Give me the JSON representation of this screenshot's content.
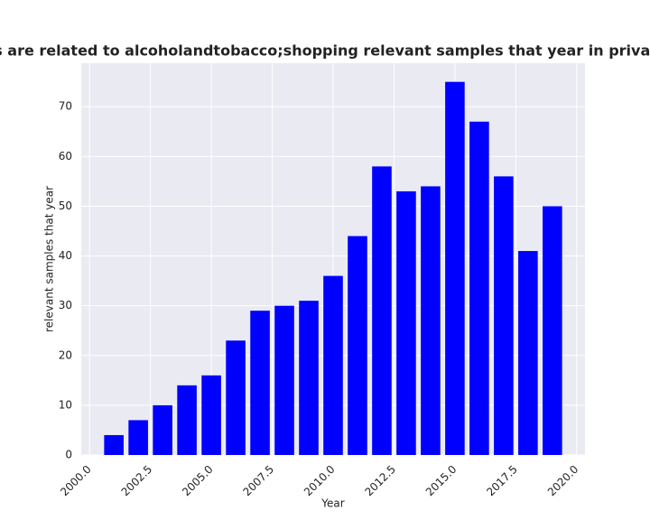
{
  "chart_data": {
    "type": "bar",
    "title": "Categories are related to alcoholandtobacco;shopping relevant samples that year in privacy policies",
    "x_label": "Year",
    "y_label": "relevant samples that year",
    "x": [
      2001,
      2002,
      2003,
      2004,
      2005,
      2006,
      2007,
      2008,
      2009,
      2010,
      2011,
      2012,
      2013,
      2014,
      2015,
      2016,
      2017,
      2018,
      2019
    ],
    "values": [
      4,
      7,
      10,
      14,
      16,
      23,
      29,
      30,
      31,
      36,
      44,
      58,
      53,
      54,
      75,
      67,
      56,
      41,
      50
    ],
    "color": "#0000ff",
    "xlim": [
      1999.66,
      2020.34
    ],
    "xticks": [
      {
        "value": 2000,
        "label": "2000.0"
      },
      {
        "value": 2002.5,
        "label": "2002.5"
      },
      {
        "value": 2005,
        "label": "2005.0"
      },
      {
        "value": 2007.5,
        "label": "2007.5"
      },
      {
        "value": 2010,
        "label": "2010.0"
      },
      {
        "value": 2012.5,
        "label": "2012.5"
      },
      {
        "value": 2015,
        "label": "2015.0"
      },
      {
        "value": 2017.5,
        "label": "2017.5"
      },
      {
        "value": 2020,
        "label": "2020.0"
      }
    ],
    "ylim": [
      0,
      78.75
    ],
    "yticks": [
      0,
      10,
      20,
      30,
      40,
      50,
      60,
      70
    ],
    "grid": true
  }
}
